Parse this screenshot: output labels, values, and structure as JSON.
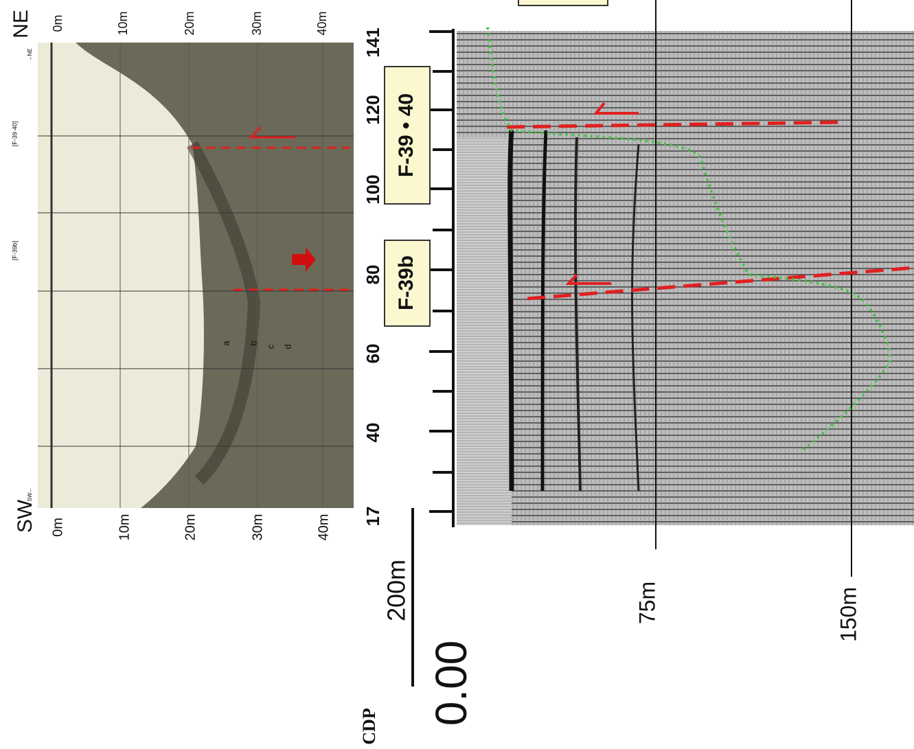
{
  "header": {
    "left": "SW",
    "right": "NE"
  },
  "sonar": {
    "depth_labels_top": [
      "0m",
      "10m",
      "20m",
      "30m",
      "40m"
    ],
    "depth_labels_bottom": [
      "0m",
      "10m",
      "20m",
      "30m",
      "40m"
    ],
    "markers": [
      "[F-39·40]",
      "[F-39b]"
    ],
    "directions": [
      "SW←",
      "→NE"
    ],
    "layers": [
      "a",
      "b",
      "c",
      "d"
    ]
  },
  "seismic": {
    "cdp_label": "CDP",
    "cdp_ticks": [
      "141",
      "120",
      "100",
      "80",
      "60",
      "40",
      "17"
    ],
    "scale": "200m",
    "time": "0.00",
    "depth_labels": [
      "75m",
      "150m"
    ],
    "faults": [
      "F-39 • 40",
      "F-39b"
    ]
  }
}
